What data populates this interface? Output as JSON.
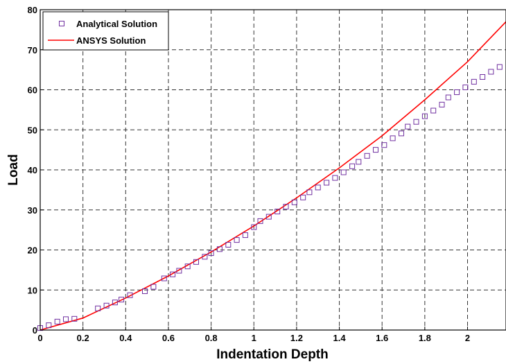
{
  "chart_data": {
    "type": "line",
    "xlabel": "Indentation Depth",
    "ylabel": "Load",
    "xlim": [
      0,
      2.18
    ],
    "ylim": [
      0,
      80
    ],
    "xticks": [
      0,
      0.2,
      0.4,
      0.6,
      0.8,
      1,
      1.2,
      1.4,
      1.6,
      1.8,
      2
    ],
    "xtick_labels": [
      "0",
      "0.2",
      "0.4",
      "0.6",
      "0.8",
      "1",
      "1.2",
      "1.4",
      "1.6",
      "1.8",
      "2"
    ],
    "yticks": [
      0,
      10,
      20,
      30,
      40,
      50,
      60,
      70,
      80
    ],
    "ytick_labels": [
      "0",
      "10",
      "20",
      "30",
      "40",
      "50",
      "60",
      "70",
      "80"
    ],
    "grid": true,
    "legend_position": "top-left",
    "series": [
      {
        "name": "Analytical Solution",
        "style": "markers",
        "marker": "square",
        "color": "#7030a0",
        "x": [
          0.0,
          0.04,
          0.08,
          0.12,
          0.16,
          0.27,
          0.31,
          0.35,
          0.38,
          0.42,
          0.49,
          0.53,
          0.58,
          0.62,
          0.65,
          0.69,
          0.73,
          0.77,
          0.8,
          0.84,
          0.88,
          0.92,
          0.96,
          1.0,
          1.03,
          1.07,
          1.11,
          1.15,
          1.19,
          1.23,
          1.26,
          1.3,
          1.34,
          1.38,
          1.42,
          1.46,
          1.49,
          1.53,
          1.57,
          1.61,
          1.65,
          1.69,
          1.72,
          1.76,
          1.8,
          1.84,
          1.88,
          1.91,
          1.95,
          1.99,
          2.03,
          2.07,
          2.11,
          2.15
        ],
        "y": [
          0.5,
          1.2,
          2.1,
          2.7,
          2.8,
          5.4,
          6.1,
          6.9,
          7.6,
          8.7,
          9.7,
          10.8,
          12.9,
          13.9,
          14.8,
          15.9,
          17.0,
          18.3,
          19.2,
          20.2,
          21.3,
          22.5,
          23.7,
          25.7,
          27.2,
          28.3,
          29.6,
          30.8,
          31.9,
          33.1,
          34.4,
          35.6,
          36.8,
          38.0,
          39.4,
          40.9,
          42.0,
          43.5,
          45.0,
          46.2,
          47.9,
          49.1,
          50.8,
          52.0,
          53.4,
          54.8,
          56.3,
          58.1,
          59.4,
          60.6,
          62.0,
          63.2,
          64.5,
          65.7
        ]
      },
      {
        "name": "ANSYS Solution",
        "style": "line",
        "color": "#ff0000",
        "x": [
          0.0,
          0.2,
          0.4,
          0.6,
          0.8,
          1.0,
          1.2,
          1.4,
          1.6,
          1.8,
          2.0,
          2.18
        ],
        "y": [
          0.0,
          3.0,
          8.0,
          13.5,
          19.5,
          26.0,
          33.0,
          40.5,
          48.5,
          57.5,
          67.0,
          77.0
        ]
      }
    ]
  },
  "colors": {
    "grid": "#333333",
    "frame": "#000000",
    "marker": "#7030a0",
    "line": "#ff0000"
  }
}
